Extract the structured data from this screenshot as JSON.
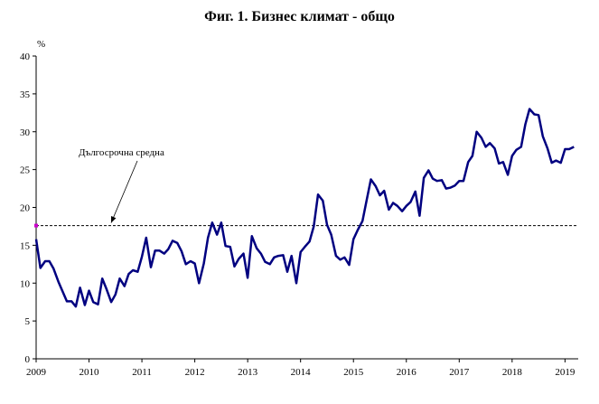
{
  "chart_data": {
    "type": "line",
    "title": "Фиг. 1. Бизнес климат - общо",
    "ylabel": "%",
    "ylim": [
      0,
      40
    ],
    "yticks": [
      0,
      5,
      10,
      15,
      20,
      25,
      30,
      35,
      40
    ],
    "xlim": [
      2009,
      2019.25
    ],
    "xtick_labels": [
      "2009",
      "2010",
      "2011",
      "2012",
      "2013",
      "2014",
      "2015",
      "2016",
      "2017",
      "2018",
      "2019"
    ],
    "grid": false,
    "reference_line": {
      "value": 17.6,
      "label": "Дългосрочна средна"
    },
    "series": [
      {
        "color": "#000080",
        "x": [
          2009.0,
          2009.08,
          2009.17,
          2009.25,
          2009.33,
          2009.42,
          2009.5,
          2009.58,
          2009.67,
          2009.75,
          2009.83,
          2009.92,
          2010.0,
          2010.08,
          2010.17,
          2010.25,
          2010.33,
          2010.42,
          2010.5,
          2010.58,
          2010.67,
          2010.75,
          2010.83,
          2010.92,
          2011.0,
          2011.08,
          2011.17,
          2011.25,
          2011.33,
          2011.42,
          2011.5,
          2011.58,
          2011.67,
          2011.75,
          2011.83,
          2011.92,
          2012.0,
          2012.08,
          2012.17,
          2012.25,
          2012.33,
          2012.42,
          2012.5,
          2012.58,
          2012.67,
          2012.75,
          2012.83,
          2012.92,
          2013.0,
          2013.08,
          2013.17,
          2013.25,
          2013.33,
          2013.42,
          2013.5,
          2013.58,
          2013.67,
          2013.75,
          2013.83,
          2013.92,
          2014.0,
          2014.08,
          2014.17,
          2014.25,
          2014.33,
          2014.42,
          2014.5,
          2014.58,
          2014.67,
          2014.75,
          2014.83,
          2014.92,
          2015.0,
          2015.08,
          2015.17,
          2015.25,
          2015.33,
          2015.42,
          2015.5,
          2015.58,
          2015.67,
          2015.75,
          2015.83,
          2015.92,
          2016.0,
          2016.08,
          2016.17,
          2016.25,
          2016.33,
          2016.42,
          2016.5,
          2016.58,
          2016.67,
          2016.75,
          2016.83,
          2016.92,
          2017.0,
          2017.08,
          2017.17,
          2017.25,
          2017.33,
          2017.42,
          2017.5,
          2017.58,
          2017.67,
          2017.75,
          2017.83,
          2017.92,
          2018.0,
          2018.08,
          2018.17,
          2018.25,
          2018.33,
          2018.42,
          2018.5,
          2018.58,
          2018.67,
          2018.75,
          2018.83,
          2018.92,
          2019.0,
          2019.08,
          2019.17
        ],
        "values": [
          15.8,
          12.0,
          12.9,
          12.9,
          11.9,
          10.2,
          8.9,
          7.6,
          7.6,
          6.9,
          9.4,
          7.1,
          9.0,
          7.5,
          7.2,
          10.6,
          9.2,
          7.5,
          8.5,
          10.6,
          9.6,
          11.2,
          11.7,
          11.5,
          13.5,
          16.0,
          12.1,
          14.3,
          14.3,
          13.9,
          14.5,
          15.6,
          15.3,
          14.2,
          12.5,
          12.9,
          12.6,
          10.0,
          12.6,
          16.0,
          18.0,
          16.4,
          18.0,
          14.9,
          14.8,
          12.2,
          13.2,
          13.9,
          10.7,
          16.2,
          14.6,
          13.9,
          12.8,
          12.5,
          13.4,
          13.6,
          13.7,
          11.5,
          13.6,
          10.0,
          14.1,
          14.8,
          15.5,
          17.5,
          21.7,
          20.9,
          17.7,
          16.4,
          13.6,
          13.1,
          13.4,
          12.4,
          15.8,
          17.0,
          18.2,
          21.0,
          23.7,
          22.8,
          21.6,
          22.2,
          19.7,
          20.6,
          20.2,
          19.5,
          20.2,
          20.7,
          22.1,
          18.9,
          23.9,
          24.9,
          23.8,
          23.5,
          23.6,
          22.5,
          22.6,
          22.9,
          23.5,
          23.5,
          26.0,
          26.8,
          30.0,
          29.2,
          28.0,
          28.5,
          27.8,
          25.8,
          26.0,
          24.3,
          26.8,
          27.6,
          28.0,
          31.0,
          33.0,
          32.3,
          32.2,
          29.4,
          27.8,
          25.9,
          26.2,
          25.9,
          27.7,
          27.7,
          28.0
        ]
      }
    ]
  }
}
